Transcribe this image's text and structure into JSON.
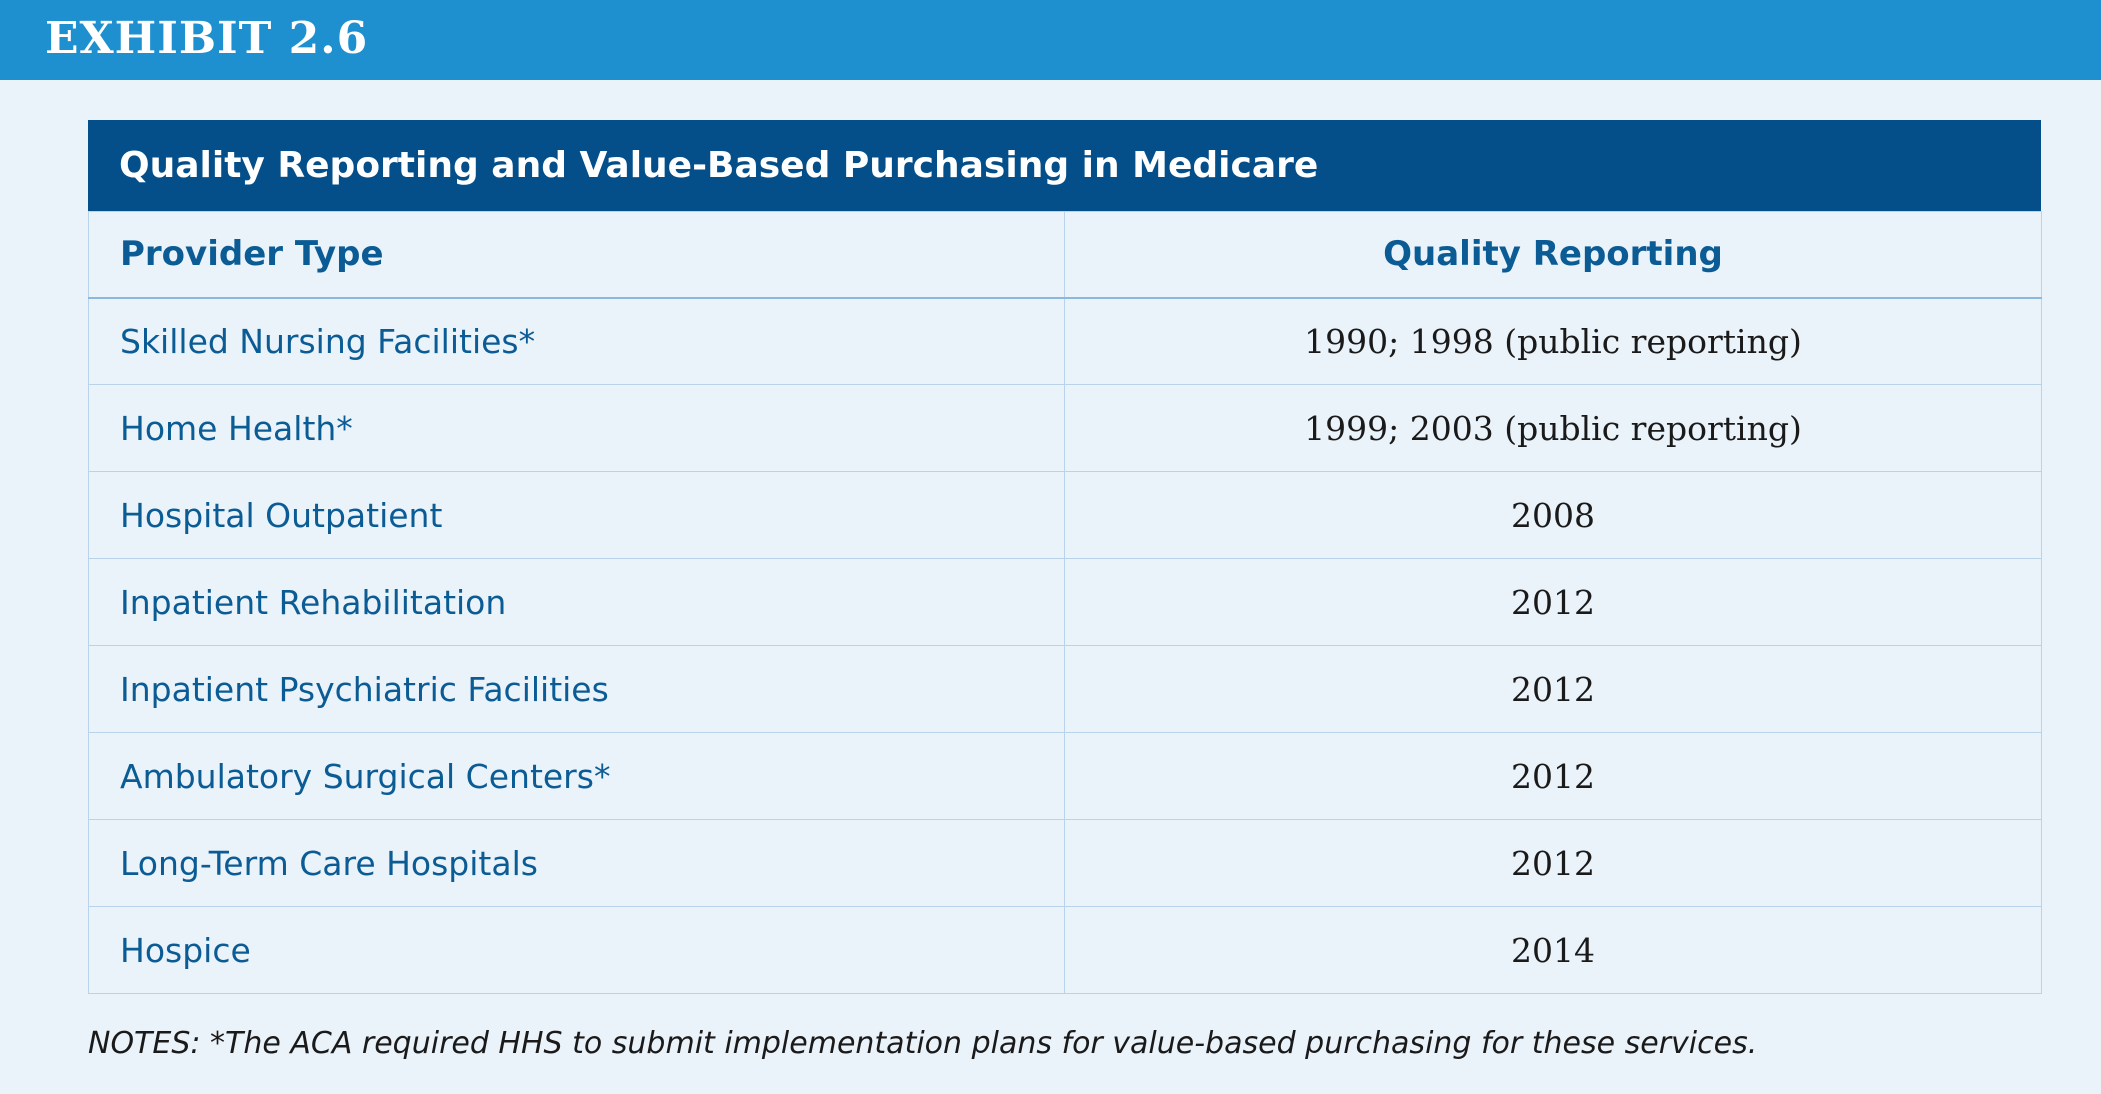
{
  "exhibit": {
    "label": "EXHIBIT 2.6"
  },
  "table": {
    "title": "Quality Reporting and Value-Based Purchasing in Medicare",
    "columns": [
      "Provider Type",
      "Quality Reporting"
    ],
    "rows": [
      {
        "provider": "Skilled Nursing Facilities*",
        "reporting": "1990; 1998 (public reporting)"
      },
      {
        "provider": "Home Health*",
        "reporting": "1999; 2003 (public reporting)"
      },
      {
        "provider": "Hospital Outpatient",
        "reporting": "2008"
      },
      {
        "provider": "Inpatient Rehabilitation",
        "reporting": "2012"
      },
      {
        "provider": "Inpatient Psychiatric Facilities",
        "reporting": "2012"
      },
      {
        "provider": "Ambulatory Surgical Centers*",
        "reporting": "2012"
      },
      {
        "provider": "Long-Term Care Hospitals",
        "reporting": "2012"
      },
      {
        "provider": "Hospice",
        "reporting": "2014"
      }
    ]
  },
  "notes": "NOTES:  *The ACA required HHS to submit implementation plans for value-based purchasing for these services.",
  "colors": {
    "exhibit_bar": "#1e90d0",
    "title_bar": "#044f89",
    "background": "#eaf2fa",
    "accent_text": "#0b5c95"
  }
}
